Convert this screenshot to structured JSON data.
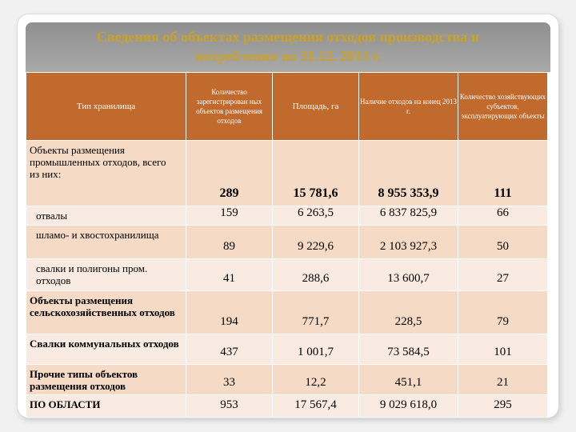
{
  "title": {
    "line1": "Сведения об объектах размещения отходов производства и",
    "line2": "потребления  на 31.12. 2013 г."
  },
  "columns": [
    "Тип хранилища",
    "Количество зарегистрирован ных объектов размещения отходов",
    "Площадь, га",
    "Наличие отходов на конец 2013 г.",
    "Количество хозяйствующих субъектов, эксплуатирующих объекты"
  ],
  "rows": [
    {
      "label": "Объекты размещения промышленных отходов, всего",
      "sublabel": "из них:",
      "count": "289",
      "area": "15 781,6",
      "waste": "8 955 353,9",
      "subjects": "111"
    },
    {
      "label": "отвалы",
      "count": "159",
      "area": "6 263,5",
      "waste": "6 837 825,9",
      "subjects": "66"
    },
    {
      "label": "шламо- и хвостохранилища",
      "count": "89",
      "area": "9 229,6",
      "waste": "2 103 927,3",
      "subjects": "50"
    },
    {
      "label": "свалки и полигоны пром. отходов",
      "count": "41",
      "area": "288,6",
      "waste": "13 600,7",
      "subjects": "27"
    },
    {
      "label": "Объекты размещения сельскохозяйственных отходов",
      "count": "194",
      "area": "771,7",
      "waste": "228,5",
      "subjects": "79"
    },
    {
      "label": "Свалки коммунальных отходов",
      "count": "437",
      "area": "1 001,7",
      "waste": "73 584,5",
      "subjects": "101"
    },
    {
      "label": "Прочие типы объектов размещения отходов",
      "count": "33",
      "area": "12,2",
      "waste": "451,1",
      "subjects": "21"
    },
    {
      "label": "ПО ОБЛАСТИ",
      "count": "953",
      "area": "17 567,4",
      "waste": "9 029 618,0",
      "subjects": "295"
    }
  ]
}
